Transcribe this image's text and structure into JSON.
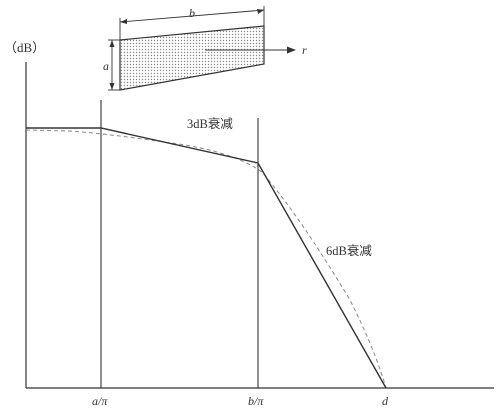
{
  "labels": {
    "y_unit": "（dB）",
    "annotation_3db": "3dB衰减",
    "annotation_6db": "6dB衰减",
    "tick_a_pi": "a/π",
    "tick_b_pi": "b/π",
    "tick_d": "d",
    "source_b": "b",
    "source_a": "a",
    "source_r": "r"
  },
  "colors": {
    "ink": "#333333",
    "dashed": "#8a8a8a",
    "hatch": "#9a9a9a"
  }
}
